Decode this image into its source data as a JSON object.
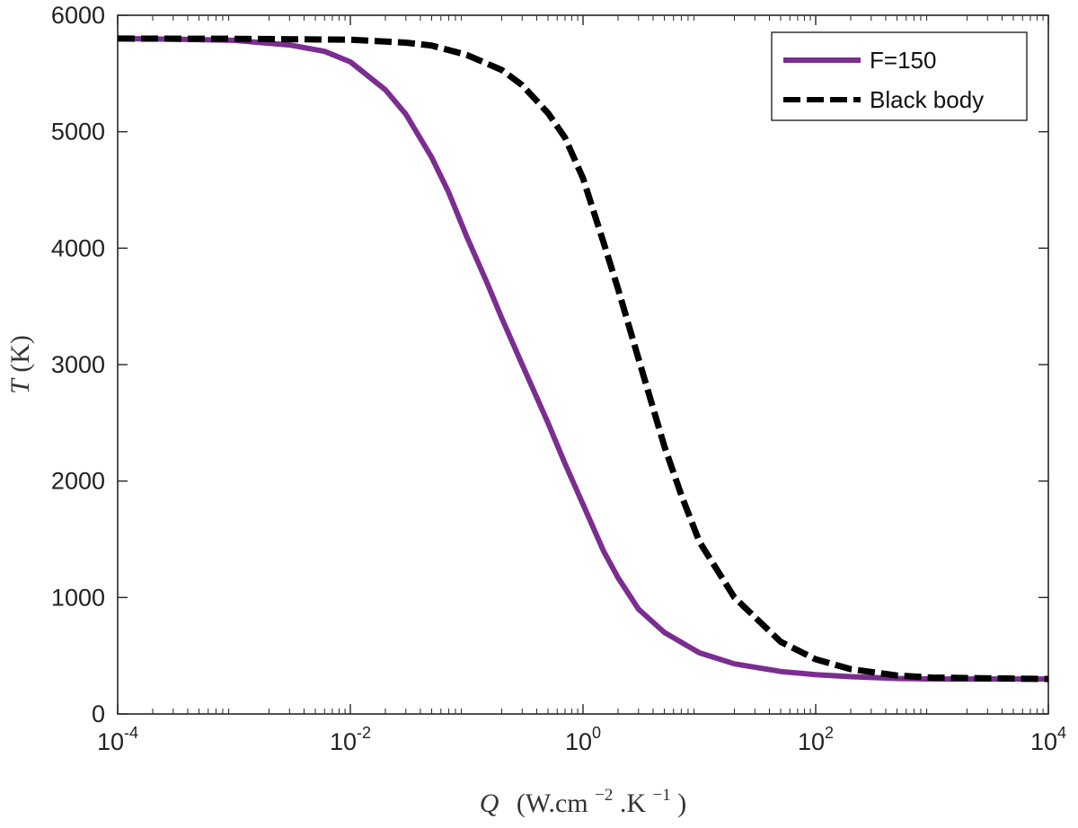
{
  "chart_data": {
    "type": "line",
    "xscale": "log",
    "xlim": [
      0.0001,
      10000
    ],
    "ylim": [
      0,
      6000
    ],
    "grid": false,
    "legend_position": "top-right",
    "xlabel": {
      "symbol": "Q",
      "prefix": "(W.cm",
      "exp1": "−2",
      "middle": ".K",
      "exp2": "−1",
      "suffix": ")"
    },
    "ylabel": {
      "symbol": "T",
      "units": " (K)"
    },
    "x_ticks": [
      {
        "value": 0.0001,
        "base": "10",
        "exp": "-4"
      },
      {
        "value": 0.01,
        "base": "10",
        "exp": "-2"
      },
      {
        "value": 1,
        "base": "10",
        "exp": "0"
      },
      {
        "value": 100,
        "base": "10",
        "exp": "2"
      },
      {
        "value": 10000,
        "base": "10",
        "exp": "4"
      }
    ],
    "y_ticks": [
      {
        "value": 0,
        "label": "0"
      },
      {
        "value": 1000,
        "label": "1000"
      },
      {
        "value": 2000,
        "label": "2000"
      },
      {
        "value": 3000,
        "label": "3000"
      },
      {
        "value": 4000,
        "label": "4000"
      },
      {
        "value": 5000,
        "label": "5000"
      },
      {
        "value": 6000,
        "label": "6000"
      }
    ],
    "series": [
      {
        "name": "F=150",
        "color": "#7b2d91",
        "style": "solid",
        "x": [
          0.0001,
          0.0003,
          0.001,
          0.003,
          0.006,
          0.01,
          0.02,
          0.03,
          0.05,
          0.07,
          0.1,
          0.15,
          0.2,
          0.3,
          0.5,
          0.7,
          1,
          1.5,
          2,
          3,
          5,
          10,
          20,
          50,
          100,
          200,
          500,
          1000,
          10000
        ],
        "y": [
          5800,
          5795,
          5785,
          5745,
          5690,
          5600,
          5360,
          5150,
          4780,
          4480,
          4100,
          3700,
          3400,
          3000,
          2500,
          2150,
          1800,
          1400,
          1170,
          900,
          700,
          525,
          430,
          365,
          338,
          320,
          305,
          300,
          300
        ]
      },
      {
        "name": "Black body",
        "color": "#000000",
        "style": "dashed",
        "x": [
          0.0001,
          0.001,
          0.01,
          0.03,
          0.05,
          0.1,
          0.2,
          0.3,
          0.5,
          0.7,
          1,
          1.5,
          2,
          3,
          5,
          7,
          10,
          20,
          50,
          100,
          200,
          500,
          1000,
          10000
        ],
        "y": [
          5800,
          5798,
          5790,
          5765,
          5740,
          5660,
          5530,
          5400,
          5160,
          4950,
          4600,
          4050,
          3650,
          3050,
          2300,
          1880,
          1480,
          1000,
          620,
          470,
          385,
          330,
          312,
          300
        ]
      }
    ]
  }
}
